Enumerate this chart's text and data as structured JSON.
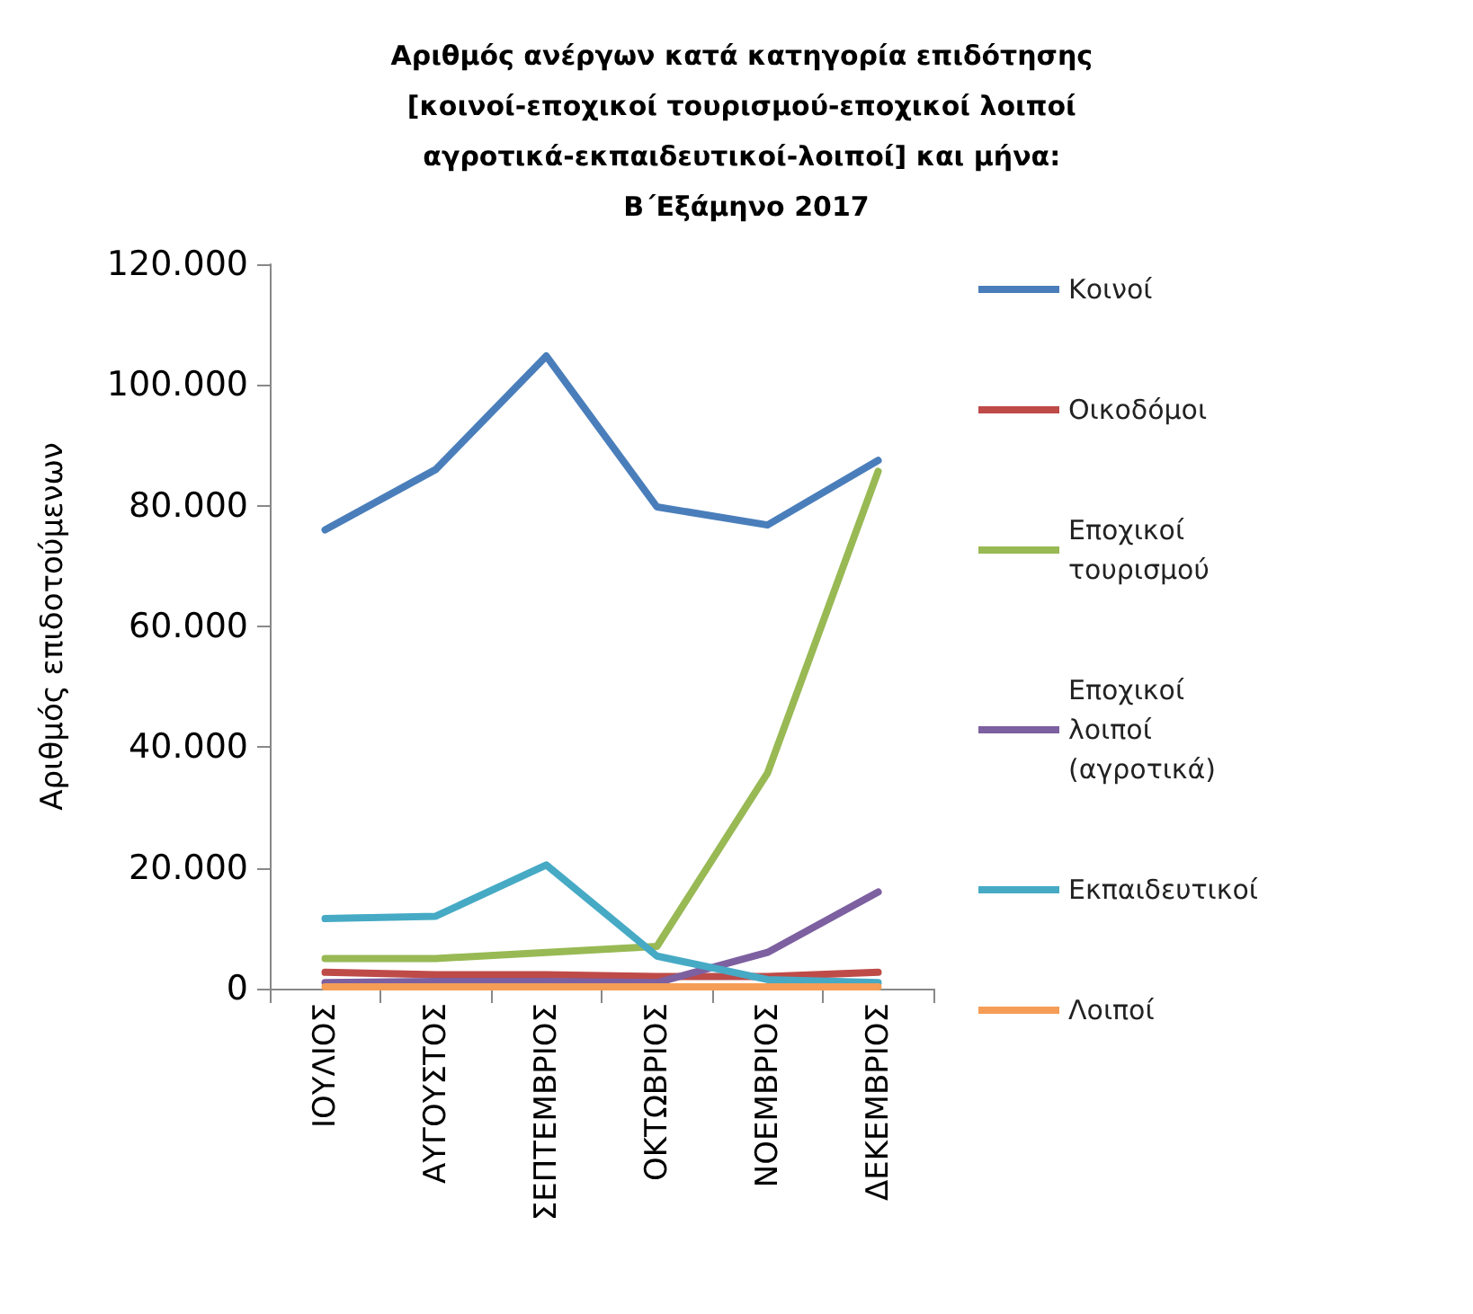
{
  "chart_data": {
    "type": "line",
    "title": "Αριθμός ανέργων κατά κατηγορία επιδότησης [κοινοί-εποχικοί τουρισμού-εποχικοί λοιποί αγροτικά-εκπαιδευτικοί-λοιποί] και μήνα: Β΄Εξάμηνο 2017",
    "ylabel": "Αριθμός επιδοτούμενων",
    "categories": [
      "ΙΟΥΛΙΟΣ",
      "ΑΥΓΟΥΣΤΟΣ",
      "ΣΕΠΤΕΜΒΡΙΟΣ",
      "ΟΚΤΩΒΡΙΟΣ",
      "ΝΟΕΜΒΡΙΟΣ",
      "ΔΕΚΕΜΒΡΙΟΣ"
    ],
    "series": [
      {
        "name": "Κοινοί",
        "color": "#4a7ebb",
        "values": [
          76000,
          86000,
          104800,
          79800,
          76800,
          87500
        ]
      },
      {
        "name": "Οικοδόμοι",
        "color": "#be4b48",
        "values": [
          2700,
          2300,
          2300,
          2000,
          2000,
          2700
        ]
      },
      {
        "name": "Εποχικοί τουρισμού",
        "color": "#98b954",
        "values": [
          5000,
          5000,
          6000,
          7000,
          35700,
          85700
        ]
      },
      {
        "name": "Εποχικοί λοιποί (αγροτικά)",
        "color": "#7d60a0",
        "values": [
          1000,
          1200,
          1200,
          1000,
          6000,
          16000
        ]
      },
      {
        "name": "Εκπαιδευτικοί",
        "color": "#46aac5",
        "values": [
          11600,
          12000,
          20500,
          5400,
          1500,
          1000
        ]
      },
      {
        "name": "Λοιποί",
        "color": "#f59d56",
        "values": [
          300,
          300,
          300,
          300,
          300,
          300
        ]
      }
    ],
    "ylim": [
      0,
      120000
    ],
    "yticks": [
      {
        "value": 0,
        "label": "0"
      },
      {
        "value": 20000,
        "label": "20.000"
      },
      {
        "value": 40000,
        "label": "40.000"
      },
      {
        "value": 60000,
        "label": "60.000"
      },
      {
        "value": 80000,
        "label": "80.000"
      },
      {
        "value": 100000,
        "label": "100.000"
      },
      {
        "value": 120000,
        "label": "120.000"
      }
    ],
    "grid": false,
    "legend": "right",
    "marker": "none",
    "line_style": "solid"
  }
}
